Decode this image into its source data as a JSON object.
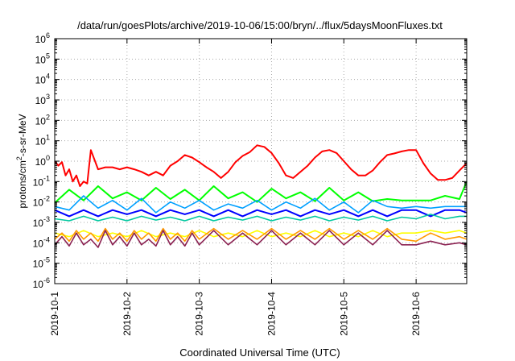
{
  "chart_data": {
    "type": "line",
    "title": "/data/run/goesPlots/archive/2019-10-06/15:00/bryn/../flux/5daysMoonFluxes.txt",
    "xlabel": "Coordinated Universal Time (UTC)",
    "ylabel_parts": {
      "prefix": "protons/cm",
      "sup": "2",
      "suffix": "-s-sr-MeV"
    },
    "y_scale": "log",
    "ylim": [
      1e-06,
      1000000.0
    ],
    "xlim": [
      0,
      5.7
    ],
    "x_tick_labels": [
      "2019-10-1",
      "2019-10-2",
      "2019-10-3",
      "2019-10-4",
      "2019-10-5",
      "2019-10-6"
    ],
    "y_tick_exponents": [
      -6,
      -5,
      -4,
      -3,
      -2,
      -1,
      0,
      1,
      2,
      3,
      4,
      5,
      6
    ],
    "y_tick_base": "10",
    "grid": true,
    "colors": [
      "#ff0000",
      "#00ff00",
      "#00a0ff",
      "#0000ff",
      "#00c8a0",
      "#ffff00",
      "#ff9900",
      "#8b2252"
    ],
    "series": [
      {
        "color": "#ff0000",
        "x": [
          0,
          0.05,
          0.1,
          0.15,
          0.2,
          0.25,
          0.3,
          0.35,
          0.4,
          0.45,
          0.5,
          0.6,
          0.7,
          0.8,
          0.9,
          1.0,
          1.1,
          1.2,
          1.3,
          1.4,
          1.5,
          1.6,
          1.7,
          1.8,
          1.9,
          2.0,
          2.1,
          2.2,
          2.3,
          2.4,
          2.5,
          2.6,
          2.7,
          2.8,
          2.9,
          3.0,
          3.1,
          3.2,
          3.3,
          3.4,
          3.5,
          3.6,
          3.7,
          3.8,
          3.9,
          4.0,
          4.1,
          4.2,
          4.3,
          4.4,
          4.5,
          4.6,
          4.7,
          4.8,
          4.9,
          5.0,
          5.1,
          5.2,
          5.3,
          5.4,
          5.5,
          5.6,
          5.7
        ],
        "y": [
          1.0,
          0.6,
          0.9,
          0.2,
          0.4,
          0.1,
          0.2,
          0.06,
          0.1,
          0.08,
          3.5,
          0.4,
          0.5,
          0.5,
          0.4,
          0.5,
          0.4,
          0.3,
          0.2,
          0.3,
          0.2,
          0.6,
          1.0,
          2.0,
          1.5,
          0.9,
          0.5,
          0.3,
          0.15,
          0.3,
          0.9,
          1.8,
          2.8,
          6.0,
          5.0,
          2.5,
          0.8,
          0.2,
          0.15,
          0.3,
          0.6,
          1.5,
          3.0,
          3.5,
          2.5,
          1.0,
          0.4,
          0.2,
          0.2,
          0.35,
          0.9,
          2.0,
          2.4,
          3.0,
          3.5,
          3.5,
          0.8,
          0.25,
          0.12,
          0.12,
          0.15,
          0.35,
          0.8
        ]
      },
      {
        "color": "#00ff00",
        "x": [
          0,
          0.2,
          0.4,
          0.6,
          0.8,
          1.0,
          1.2,
          1.4,
          1.6,
          1.8,
          2.0,
          2.2,
          2.4,
          2.6,
          2.8,
          3.0,
          3.2,
          3.4,
          3.6,
          3.8,
          4.0,
          4.2,
          4.4,
          4.6,
          4.8,
          5.0,
          5.2,
          5.4,
          5.6,
          5.7
        ],
        "y": [
          0.009,
          0.04,
          0.012,
          0.06,
          0.015,
          0.03,
          0.012,
          0.05,
          0.014,
          0.04,
          0.012,
          0.06,
          0.015,
          0.03,
          0.01,
          0.045,
          0.015,
          0.03,
          0.011,
          0.05,
          0.012,
          0.03,
          0.011,
          0.014,
          0.012,
          0.012,
          0.012,
          0.02,
          0.014,
          0.1
        ]
      },
      {
        "color": "#00a0ff",
        "x": [
          0,
          0.2,
          0.4,
          0.6,
          0.8,
          1.0,
          1.2,
          1.4,
          1.6,
          1.8,
          2.0,
          2.2,
          2.4,
          2.6,
          2.8,
          3.0,
          3.2,
          3.4,
          3.6,
          3.8,
          4.0,
          4.2,
          4.4,
          4.6,
          4.8,
          5.0,
          5.2,
          5.4,
          5.6,
          5.7
        ],
        "y": [
          0.006,
          0.004,
          0.02,
          0.005,
          0.012,
          0.004,
          0.015,
          0.003,
          0.01,
          0.005,
          0.012,
          0.004,
          0.008,
          0.005,
          0.012,
          0.004,
          0.01,
          0.005,
          0.015,
          0.004,
          0.01,
          0.003,
          0.012,
          0.006,
          0.005,
          0.006,
          0.005,
          0.006,
          0.006,
          0.006
        ]
      },
      {
        "color": "#0000ff",
        "x": [
          0,
          0.2,
          0.4,
          0.6,
          0.8,
          1.0,
          1.2,
          1.4,
          1.6,
          1.8,
          2.0,
          2.2,
          2.4,
          2.6,
          2.8,
          3.0,
          3.2,
          3.4,
          3.6,
          3.8,
          4.0,
          4.2,
          4.4,
          4.6,
          4.8,
          5.0,
          5.2,
          5.4,
          5.6,
          5.7
        ],
        "y": [
          0.004,
          0.002,
          0.004,
          0.002,
          0.004,
          0.0025,
          0.004,
          0.002,
          0.004,
          0.0025,
          0.004,
          0.002,
          0.004,
          0.002,
          0.004,
          0.0025,
          0.004,
          0.002,
          0.004,
          0.0025,
          0.004,
          0.002,
          0.004,
          0.002,
          0.004,
          0.004,
          0.002,
          0.004,
          0.004,
          0.003
        ]
      },
      {
        "color": "#00c8a0",
        "x": [
          0,
          0.2,
          0.4,
          0.6,
          0.8,
          1.0,
          1.2,
          1.4,
          1.6,
          1.8,
          2.0,
          2.2,
          2.4,
          2.6,
          2.8,
          3.0,
          3.2,
          3.4,
          3.6,
          3.8,
          4.0,
          4.2,
          4.4,
          4.6,
          4.8,
          5.0,
          5.2,
          5.4,
          5.6,
          5.7
        ],
        "y": [
          0.0015,
          0.0012,
          0.002,
          0.0012,
          0.0018,
          0.0012,
          0.002,
          0.0013,
          0.0018,
          0.0012,
          0.002,
          0.0012,
          0.0018,
          0.0013,
          0.002,
          0.0012,
          0.0018,
          0.0013,
          0.002,
          0.0012,
          0.0018,
          0.0013,
          0.002,
          0.0012,
          0.0018,
          0.0015,
          0.0025,
          0.0015,
          0.002,
          0.002
        ]
      },
      {
        "color": "#ffff00",
        "x": [
          0,
          0.2,
          0.4,
          0.6,
          0.8,
          1.0,
          1.2,
          1.4,
          1.6,
          1.8,
          2.0,
          2.2,
          2.4,
          2.6,
          2.8,
          3.0,
          3.2,
          3.4,
          3.6,
          3.8,
          4.0,
          4.2,
          4.4,
          4.6,
          4.8,
          5.0,
          5.2,
          5.4,
          5.6,
          5.7
        ],
        "y": [
          0.0003,
          0.0002,
          0.0004,
          0.0002,
          0.0003,
          0.0002,
          0.0004,
          0.0002,
          0.0003,
          0.0002,
          0.0004,
          0.0002,
          0.0003,
          0.0002,
          0.0004,
          0.0002,
          0.0003,
          0.0002,
          0.0004,
          0.0002,
          0.0003,
          0.0002,
          0.0004,
          0.0002,
          0.0003,
          0.0003,
          0.0004,
          0.0003,
          0.0004,
          0.0003
        ]
      },
      {
        "color": "#ff9900",
        "x": [
          0,
          0.1,
          0.2,
          0.3,
          0.4,
          0.5,
          0.6,
          0.7,
          0.8,
          0.9,
          1.0,
          1.1,
          1.2,
          1.3,
          1.4,
          1.5,
          1.6,
          1.7,
          1.8,
          1.9,
          2.0,
          2.2,
          2.4,
          2.6,
          2.8,
          3.0,
          3.2,
          3.4,
          3.6,
          3.8,
          4.0,
          4.2,
          4.4,
          4.6,
          4.8,
          5.0,
          5.2,
          5.4,
          5.6,
          5.7
        ],
        "y": [
          0.00015,
          0.0003,
          0.00012,
          0.0004,
          0.00015,
          0.0003,
          0.00012,
          0.0005,
          0.00015,
          0.0003,
          0.00012,
          0.0004,
          0.00015,
          0.0003,
          0.00012,
          0.0005,
          0.00015,
          0.0003,
          0.00012,
          0.0004,
          0.00015,
          0.0005,
          0.00015,
          0.0004,
          0.00015,
          0.0005,
          0.00015,
          0.0004,
          0.00015,
          0.0005,
          0.00015,
          0.0004,
          0.00015,
          0.0005,
          0.00015,
          0.00012,
          0.0003,
          0.00015,
          0.0002,
          0.00015
        ]
      },
      {
        "color": "#8b2252",
        "x": [
          0,
          0.1,
          0.2,
          0.3,
          0.4,
          0.5,
          0.6,
          0.7,
          0.8,
          0.9,
          1.0,
          1.1,
          1.2,
          1.3,
          1.4,
          1.5,
          1.6,
          1.7,
          1.8,
          1.9,
          2.0,
          2.2,
          2.4,
          2.6,
          2.8,
          3.0,
          3.2,
          3.4,
          3.6,
          3.8,
          4.0,
          4.2,
          4.4,
          4.6,
          4.8,
          5.0,
          5.2,
          5.4,
          5.6,
          5.7
        ],
        "y": [
          8e-05,
          0.0002,
          7e-05,
          0.0003,
          8e-05,
          0.00015,
          6e-05,
          0.0004,
          8e-05,
          0.0002,
          7e-05,
          0.0003,
          8e-05,
          0.00015,
          7e-05,
          0.0004,
          8e-05,
          0.0002,
          7e-05,
          0.0003,
          8e-05,
          0.0004,
          8e-05,
          0.0003,
          8e-05,
          0.0004,
          8e-05,
          0.0003,
          8e-05,
          0.0004,
          8e-05,
          0.0003,
          8e-05,
          0.0004,
          8e-05,
          8e-05,
          0.00012,
          8e-05,
          0.0001,
          8e-05
        ]
      }
    ]
  }
}
